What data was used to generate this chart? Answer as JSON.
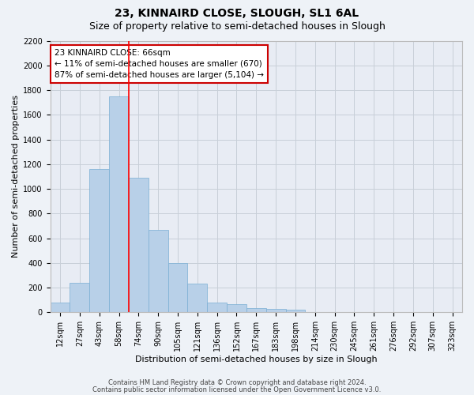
{
  "title": "23, KINNAIRD CLOSE, SLOUGH, SL1 6AL",
  "subtitle": "Size of property relative to semi-detached houses in Slough",
  "xlabel": "Distribution of semi-detached houses by size in Slough",
  "ylabel": "Number of semi-detached properties",
  "categories": [
    "12sqm",
    "27sqm",
    "43sqm",
    "58sqm",
    "74sqm",
    "90sqm",
    "105sqm",
    "121sqm",
    "136sqm",
    "152sqm",
    "167sqm",
    "183sqm",
    "198sqm",
    "214sqm",
    "230sqm",
    "245sqm",
    "261sqm",
    "276sqm",
    "292sqm",
    "307sqm",
    "323sqm"
  ],
  "values": [
    80,
    240,
    1160,
    1750,
    1090,
    670,
    400,
    230,
    80,
    65,
    35,
    30,
    20,
    5,
    2,
    1,
    1,
    0,
    0,
    0,
    0
  ],
  "bar_color": "#b8d0e8",
  "bar_edge_color": "#7aafd4",
  "red_line_bar_index": 4,
  "annotation_line1": "23 KINNAIRD CLOSE: 66sqm",
  "annotation_line2": "← 11% of semi-detached houses are smaller (670)",
  "annotation_line3": "87% of semi-detached houses are larger (5,104) →",
  "annotation_box_color": "#ffffff",
  "annotation_border_color": "#cc0000",
  "ylim": [
    0,
    2200
  ],
  "yticks": [
    0,
    200,
    400,
    600,
    800,
    1000,
    1200,
    1400,
    1600,
    1800,
    2000,
    2200
  ],
  "footer1": "Contains HM Land Registry data © Crown copyright and database right 2024.",
  "footer2": "Contains public sector information licensed under the Open Government Licence v3.0.",
  "background_color": "#eef2f7",
  "plot_background_color": "#e8ecf4",
  "grid_color": "#c8cfd8",
  "title_fontsize": 10,
  "subtitle_fontsize": 9,
  "axis_label_fontsize": 8,
  "tick_fontsize": 7,
  "annotation_fontsize": 7.5,
  "footer_fontsize": 6
}
